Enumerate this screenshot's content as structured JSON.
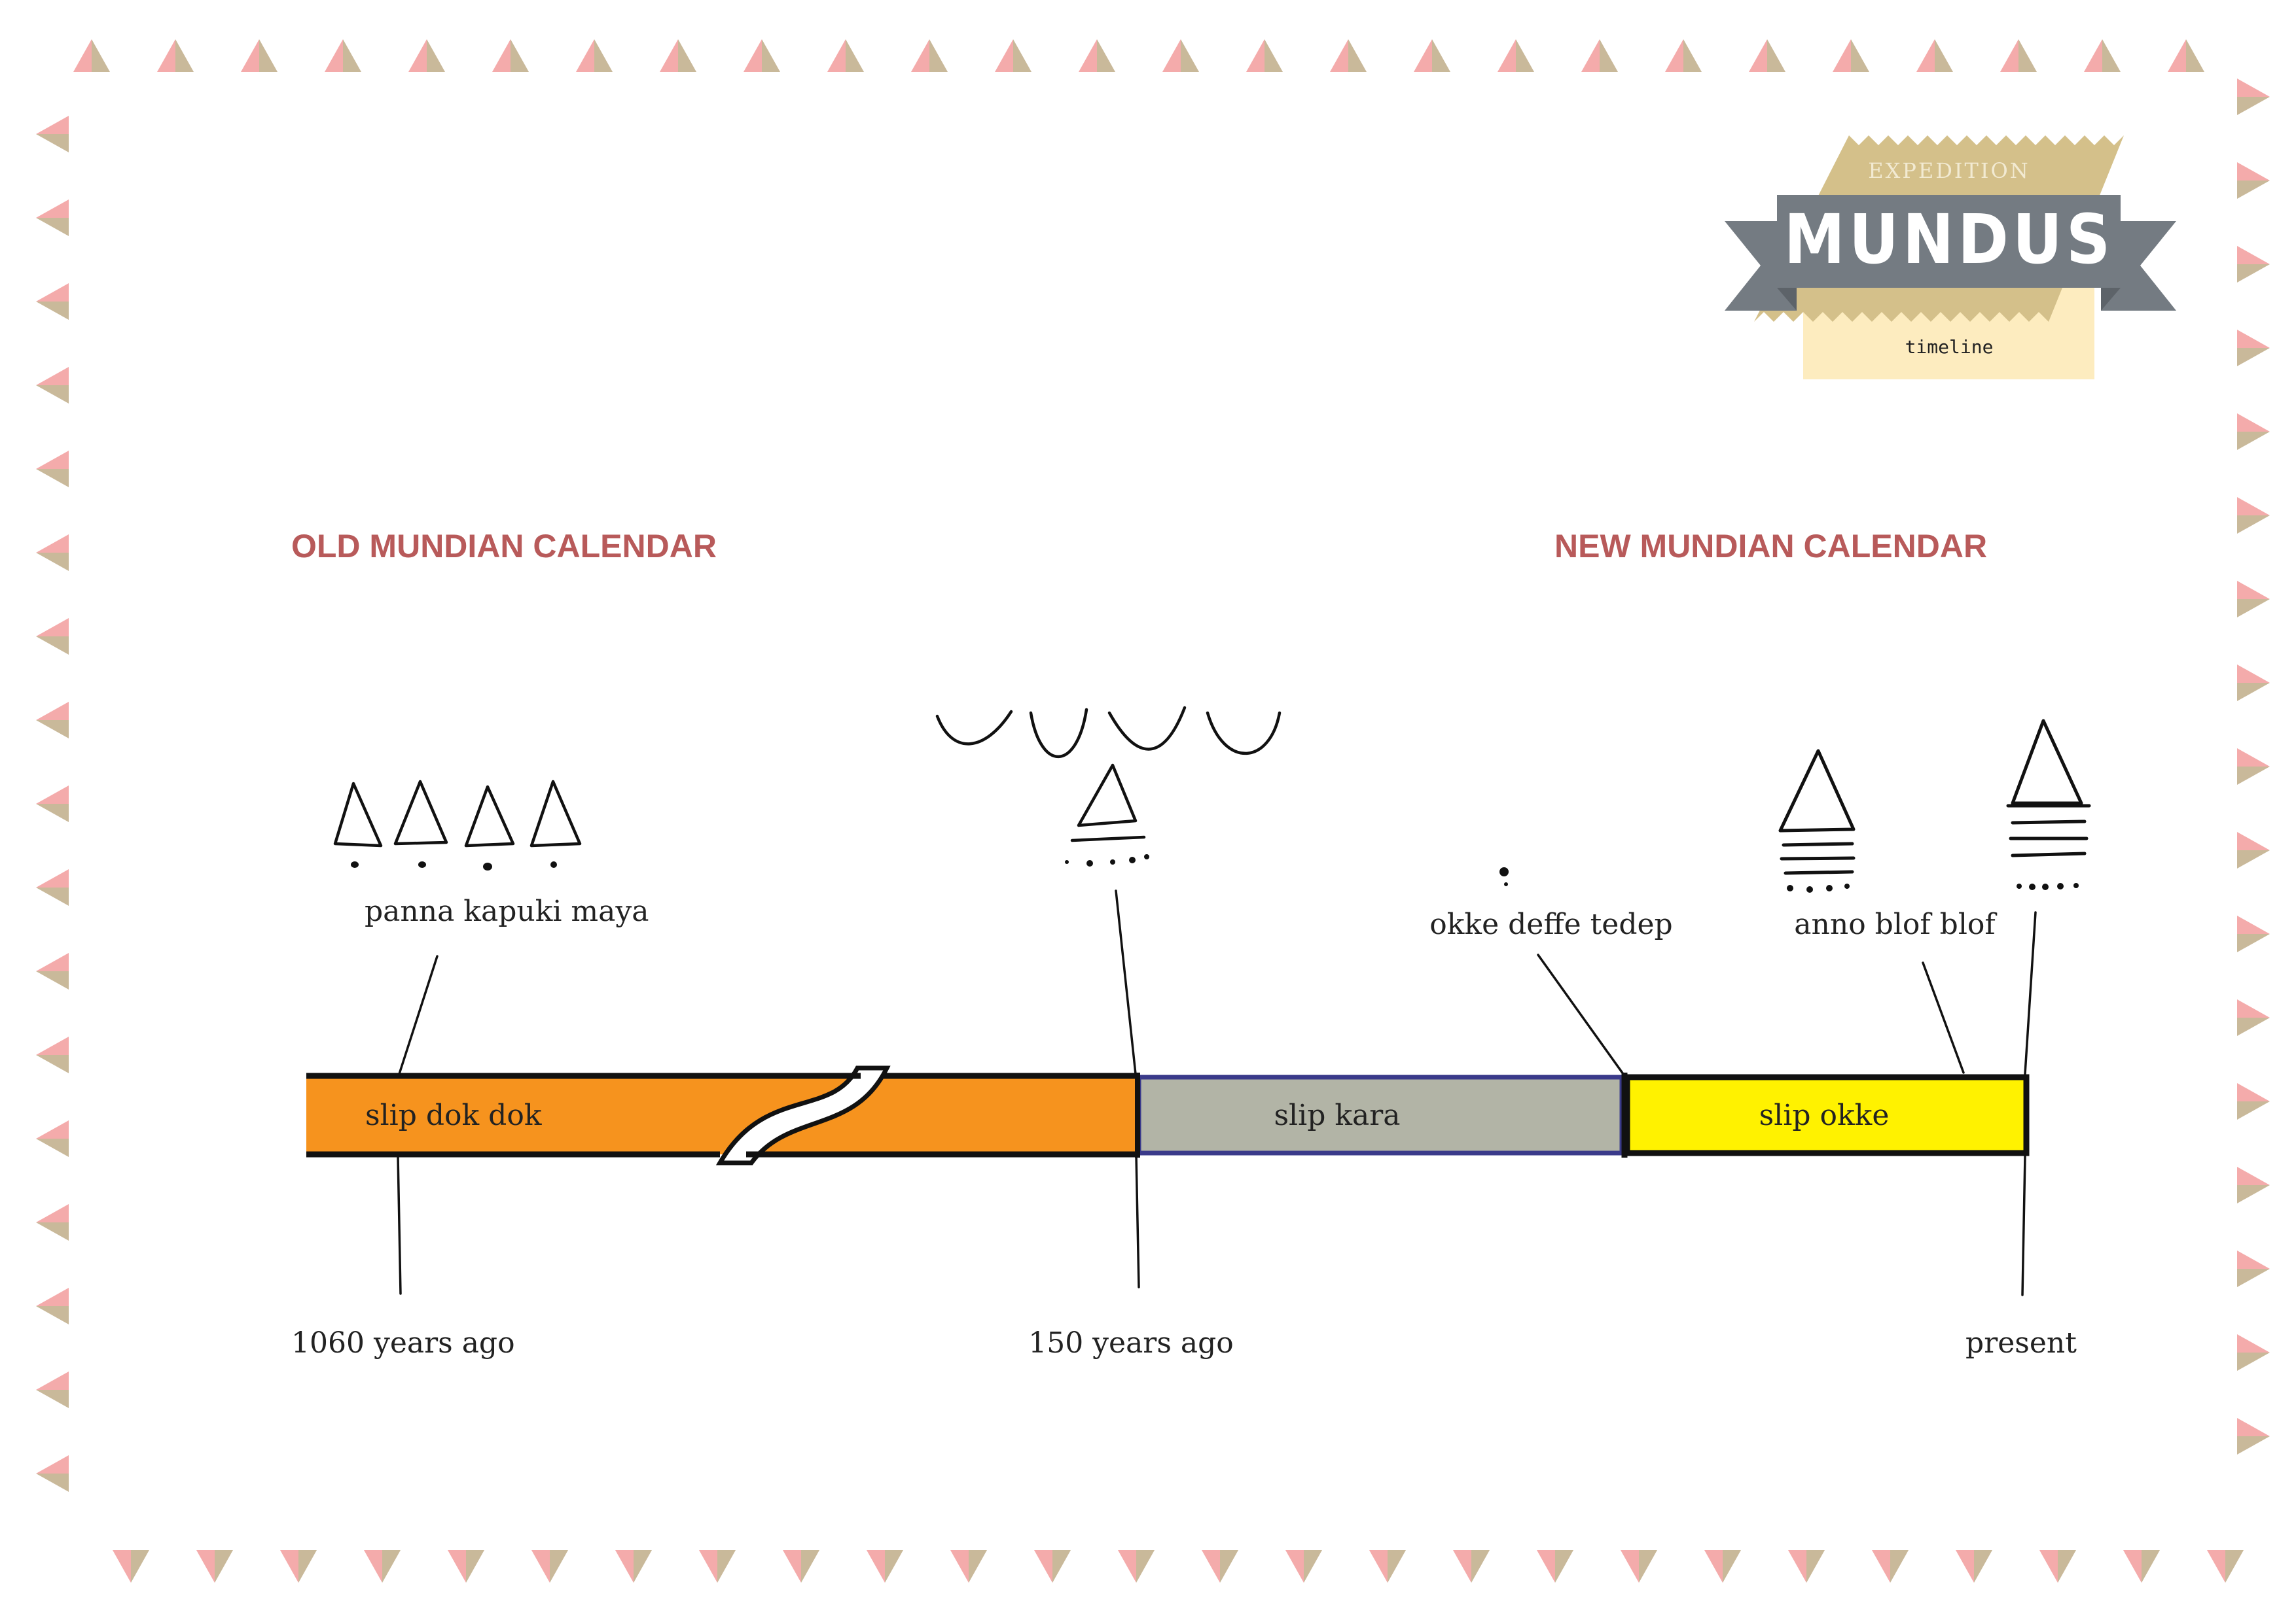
{
  "badge": {
    "top_text": "EXPEDITION",
    "title": "MUNDUS",
    "subtitle": "timeline",
    "colors": {
      "gold": "#d4c08a",
      "ribbon": "#747b82",
      "cream": "#fdecbf",
      "top_text": "#f2ead2"
    }
  },
  "headings": {
    "old_calendar": "OLD MUNDIAN CALENDAR",
    "new_calendar": "NEW MUNDIAN CALENDAR",
    "color": "#b85a5a"
  },
  "segments": [
    {
      "label": "slip dok dok",
      "color": "#f6931e"
    },
    {
      "label": "slip kara",
      "color": "#b2b4a6",
      "border_color": "#3a3a8a"
    },
    {
      "label": "slip okke",
      "color": "#fff200"
    }
  ],
  "annotations": [
    {
      "label": "panna kapuki maya"
    },
    {
      "label": "okke deffe tedep"
    },
    {
      "label": "anno blof blof"
    }
  ],
  "time_markers": [
    {
      "label": "1060 years ago"
    },
    {
      "label": "150 years ago"
    },
    {
      "label": "present"
    }
  ],
  "border_colors": {
    "pink": "#f4abab",
    "tan": "#c9b99a"
  }
}
